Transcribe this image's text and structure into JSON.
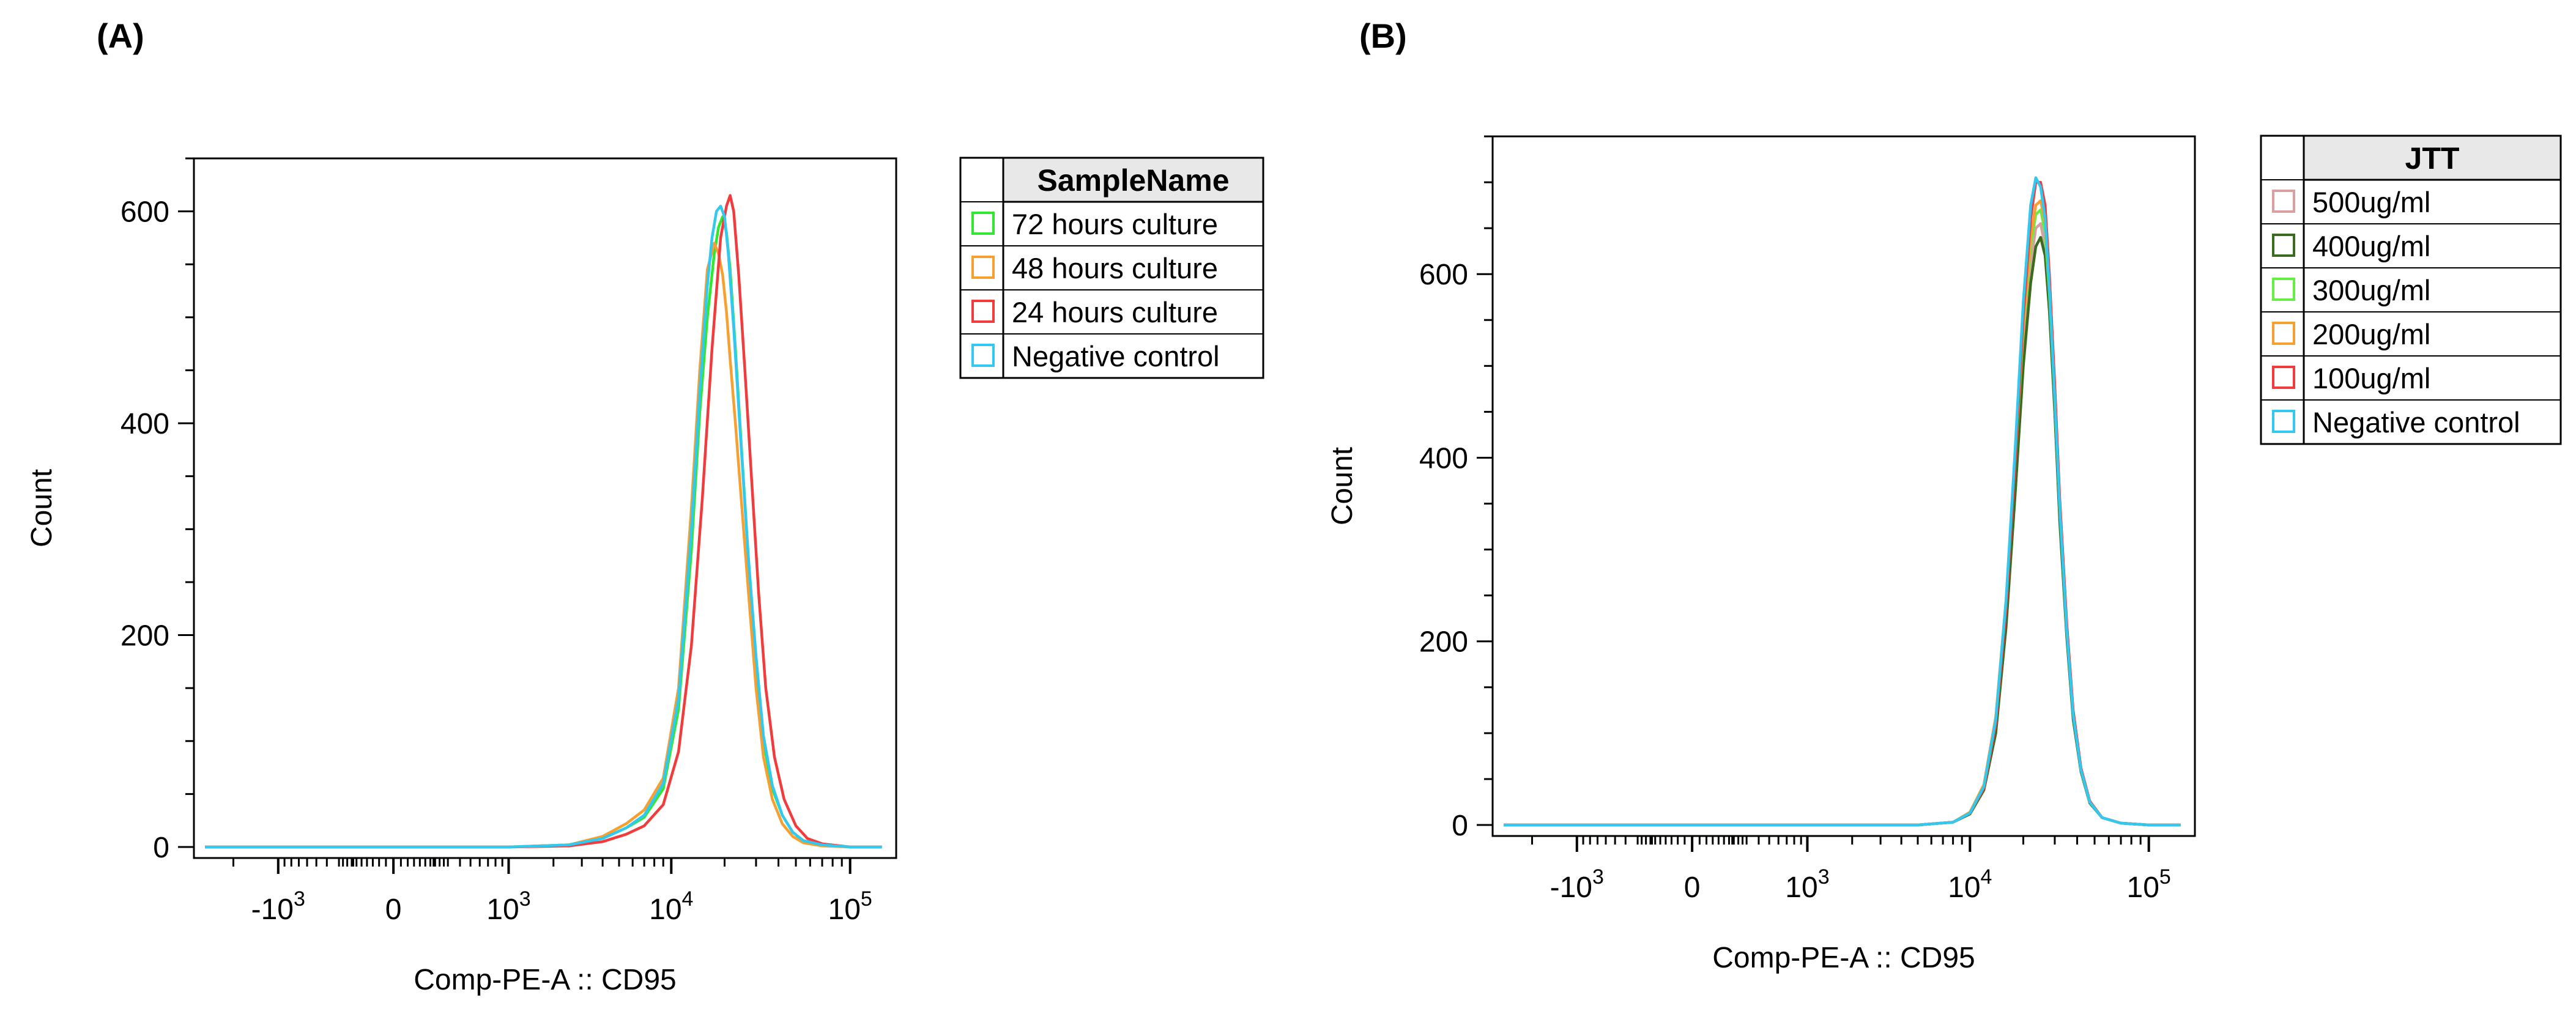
{
  "figure": {
    "panels": [
      {
        "letter": "(A)"
      },
      {
        "letter": "(B)"
      }
    ]
  },
  "chart_data": [
    {
      "type": "line",
      "title": "",
      "panel_label": "(A)",
      "xlabel": "Comp-PE-A :: CD95",
      "ylabel": "Count",
      "x_scale": "biexponential",
      "x_ticks": [
        {
          "value": -1000,
          "base": "-10",
          "exp": "3"
        },
        {
          "value": 0,
          "base": "0",
          "exp": ""
        },
        {
          "value": 1000,
          "base": "10",
          "exp": "3"
        },
        {
          "value": 10000,
          "base": "10",
          "exp": "4"
        },
        {
          "value": 100000,
          "base": "10",
          "exp": "5"
        }
      ],
      "xlim": [
        -3500,
        180000
      ],
      "ylim": [
        0,
        650
      ],
      "y_ticks": [
        0,
        200,
        400,
        600
      ],
      "legend": {
        "title": "SampleName",
        "placement": "right",
        "entries": [
          {
            "label": "72 hours culture",
            "color": "#33e633"
          },
          {
            "label": "48 hours culture",
            "color": "#f5a030"
          },
          {
            "label": "24 hours culture",
            "color": "#f03c3c"
          },
          {
            "label": "Negative control",
            "color": "#33c8f0"
          }
        ]
      },
      "series": [
        {
          "name": "72 hours culture",
          "color": "#33e633",
          "x": [
            -3000,
            -500,
            0,
            1000,
            2500,
            4000,
            5500,
            7000,
            9000,
            11000,
            13000,
            14500,
            16000,
            17500,
            18500,
            19500,
            20500,
            21500,
            23000,
            25000,
            27500,
            30000,
            33000,
            37000,
            42000,
            48000,
            55000,
            70000,
            100000,
            150000
          ],
          "y": [
            0,
            0,
            0,
            0,
            2,
            8,
            18,
            28,
            55,
            130,
            280,
            410,
            500,
            560,
            585,
            595,
            580,
            545,
            470,
            370,
            260,
            170,
            100,
            55,
            30,
            14,
            6,
            2,
            0,
            0
          ]
        },
        {
          "name": "48 hours culture",
          "color": "#f5a030",
          "x": [
            -3000,
            -500,
            0,
            1000,
            2500,
            4000,
            5500,
            7000,
            9000,
            11000,
            13000,
            14500,
            16000,
            17500,
            18500,
            19500,
            20500,
            21500,
            23000,
            25000,
            27500,
            30000,
            33000,
            37000,
            42000,
            48000,
            55000,
            70000,
            100000,
            150000
          ],
          "y": [
            0,
            0,
            0,
            0,
            2,
            10,
            22,
            35,
            65,
            150,
            320,
            450,
            545,
            570,
            560,
            540,
            505,
            460,
            400,
            320,
            230,
            150,
            85,
            45,
            22,
            10,
            4,
            1,
            0,
            0
          ]
        },
        {
          "name": "24 hours culture",
          "color": "#f03c3c",
          "x": [
            -3000,
            -500,
            0,
            1000,
            2500,
            4000,
            5500,
            7000,
            9000,
            11000,
            13000,
            15000,
            17000,
            19000,
            20500,
            21500,
            22500,
            24000,
            26000,
            28500,
            31000,
            34000,
            38000,
            43000,
            50000,
            58000,
            70000,
            100000,
            150000
          ],
          "y": [
            0,
            0,
            0,
            0,
            1,
            5,
            12,
            20,
            40,
            90,
            190,
            330,
            470,
            575,
            605,
            615,
            600,
            540,
            450,
            340,
            240,
            150,
            85,
            45,
            20,
            8,
            3,
            0,
            0
          ]
        },
        {
          "name": "Negative control",
          "color": "#33c8f0",
          "x": [
            -3000,
            -500,
            0,
            1000,
            2500,
            4000,
            5500,
            7000,
            9000,
            11000,
            13000,
            14500,
            16000,
            17000,
            18000,
            19000,
            20000,
            21000,
            22500,
            24500,
            27000,
            30000,
            33000,
            37000,
            42000,
            48000,
            55000,
            70000,
            100000,
            150000
          ],
          "y": [
            0,
            0,
            0,
            0,
            2,
            8,
            18,
            30,
            60,
            140,
            300,
            430,
            530,
            575,
            600,
            605,
            595,
            560,
            490,
            390,
            280,
            180,
            105,
            58,
            30,
            14,
            6,
            2,
            0,
            0
          ]
        }
      ]
    },
    {
      "type": "line",
      "title": "",
      "panel_label": "(B)",
      "xlabel": "Comp-PE-A :: CD95",
      "ylabel": "Count",
      "x_scale": "biexponential",
      "x_ticks": [
        {
          "value": -1000,
          "base": "-10",
          "exp": "3"
        },
        {
          "value": 0,
          "base": "0",
          "exp": ""
        },
        {
          "value": 1000,
          "base": "10",
          "exp": "3"
        },
        {
          "value": 10000,
          "base": "10",
          "exp": "4"
        },
        {
          "value": 100000,
          "base": "10",
          "exp": "5"
        }
      ],
      "xlim": [
        -3500,
        180000
      ],
      "ylim": [
        0,
        750
      ],
      "y_ticks": [
        0,
        200,
        400,
        600
      ],
      "legend": {
        "title": "JTT",
        "placement": "right",
        "entries": [
          {
            "label": "500ug/ml",
            "color": "#d8a0a0"
          },
          {
            "label": "400ug/ml",
            "color": "#3a6b1e"
          },
          {
            "label": "300ug/ml",
            "color": "#66ee44"
          },
          {
            "label": "200ug/ml",
            "color": "#f5a030"
          },
          {
            "label": "100ug/ml",
            "color": "#f03c3c"
          },
          {
            "label": "Negative control",
            "color": "#33c8f0"
          }
        ]
      },
      "series": [
        {
          "name": "500ug/ml",
          "color": "#d8a0a0",
          "x": [
            -3000,
            0,
            2000,
            5000,
            8000,
            10000,
            12000,
            14000,
            16000,
            18000,
            20000,
            22000,
            23500,
            25000,
            26500,
            28000,
            30000,
            32000,
            35000,
            38000,
            42000,
            47000,
            55000,
            70000,
            100000,
            150000
          ],
          "y": [
            0,
            0,
            0,
            0,
            3,
            12,
            40,
            110,
            230,
            380,
            520,
            610,
            650,
            655,
            630,
            570,
            460,
            340,
            210,
            120,
            60,
            25,
            8,
            2,
            0,
            0
          ]
        },
        {
          "name": "400ug/ml",
          "color": "#3a6b1e",
          "x": [
            -3000,
            0,
            2000,
            5000,
            8000,
            10000,
            12000,
            14000,
            16000,
            18000,
            20000,
            22000,
            23500,
            25000,
            26500,
            28000,
            30000,
            32000,
            35000,
            38000,
            42000,
            47000,
            55000,
            70000,
            100000,
            150000
          ],
          "y": [
            0,
            0,
            0,
            0,
            3,
            12,
            38,
            100,
            215,
            360,
            500,
            590,
            630,
            640,
            620,
            560,
            450,
            330,
            205,
            115,
            58,
            24,
            8,
            2,
            0,
            0
          ]
        },
        {
          "name": "300ug/ml",
          "color": "#66ee44",
          "x": [
            -3000,
            0,
            2000,
            5000,
            8000,
            10000,
            12000,
            14000,
            16000,
            18000,
            20000,
            22000,
            23500,
            25000,
            26500,
            28000,
            30000,
            32000,
            35000,
            38000,
            42000,
            47000,
            55000,
            70000,
            100000,
            150000
          ],
          "y": [
            0,
            0,
            0,
            0,
            3,
            13,
            42,
            115,
            240,
            395,
            540,
            630,
            665,
            670,
            645,
            580,
            465,
            345,
            215,
            122,
            60,
            25,
            8,
            2,
            0,
            0
          ]
        },
        {
          "name": "200ug/ml",
          "color": "#f5a030",
          "x": [
            -3000,
            0,
            2000,
            5000,
            8000,
            10000,
            12000,
            14000,
            16000,
            18000,
            20000,
            22000,
            23500,
            25000,
            26500,
            28000,
            30000,
            32000,
            35000,
            38000,
            42000,
            47000,
            55000,
            70000,
            100000,
            150000
          ],
          "y": [
            0,
            0,
            0,
            0,
            3,
            14,
            44,
            118,
            245,
            400,
            545,
            640,
            675,
            680,
            655,
            590,
            470,
            350,
            218,
            124,
            62,
            26,
            8,
            2,
            0,
            0
          ]
        },
        {
          "name": "100ug/ml",
          "color": "#f03c3c",
          "x": [
            -3000,
            0,
            2000,
            5000,
            8000,
            10000,
            12000,
            14000,
            16000,
            18000,
            20000,
            22000,
            23500,
            25000,
            26500,
            28000,
            30000,
            32000,
            35000,
            38000,
            42000,
            47000,
            55000,
            70000,
            100000,
            150000
          ],
          "y": [
            0,
            0,
            0,
            0,
            3,
            13,
            40,
            110,
            235,
            395,
            555,
            660,
            700,
            700,
            675,
            600,
            480,
            355,
            220,
            125,
            62,
            26,
            8,
            2,
            0,
            0
          ]
        },
        {
          "name": "Negative control",
          "color": "#33c8f0",
          "x": [
            -3000,
            0,
            2000,
            5000,
            8000,
            10000,
            12000,
            14000,
            16000,
            18000,
            20000,
            22000,
            23500,
            25000,
            26500,
            28000,
            30000,
            32000,
            35000,
            38000,
            42000,
            47000,
            55000,
            70000,
            100000,
            150000
          ],
          "y": [
            0,
            0,
            0,
            0,
            3,
            13,
            42,
            115,
            245,
            410,
            570,
            675,
            705,
            695,
            660,
            585,
            465,
            345,
            212,
            120,
            60,
            25,
            8,
            2,
            0,
            0
          ]
        }
      ]
    }
  ]
}
